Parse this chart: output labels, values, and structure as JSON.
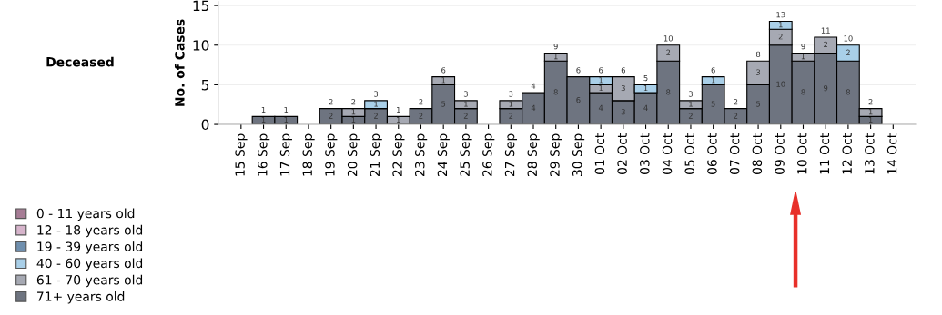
{
  "chart_data": {
    "type": "bar",
    "stacked": true,
    "ylabel": "No. of Cases",
    "annotations": [
      "Deceased"
    ],
    "categories": [
      "15 Sep",
      "16 Sep",
      "17 Sep",
      "18 Sep",
      "19 Sep",
      "20 Sep",
      "21 Sep",
      "22 Sep",
      "23 Sep",
      "24 Sep",
      "25 Sep",
      "26 Sep",
      "27 Sep",
      "28 Sep",
      "29 Sep",
      "30 Sep",
      "01 Oct",
      "02 Oct",
      "03 Oct",
      "04 Oct",
      "05 Oct",
      "06 Oct",
      "07 Oct",
      "08 Oct",
      "09 Oct",
      "10 Oct",
      "11 Oct",
      "12 Oct",
      "13 Oct",
      "14 Oct"
    ],
    "series": [
      {
        "name": "71+ years old",
        "color": "#6e7480",
        "values": [
          null,
          1,
          1,
          null,
          2,
          1,
          2,
          null,
          2,
          5,
          2,
          null,
          2,
          4,
          8,
          6,
          4,
          3,
          4,
          8,
          2,
          5,
          2,
          5,
          10,
          8,
          9,
          8,
          1,
          null
        ]
      },
      {
        "name": "61 - 70 years old",
        "color": "#a6a9b3",
        "values": [
          null,
          null,
          null,
          null,
          null,
          1,
          null,
          1,
          null,
          1,
          1,
          null,
          1,
          null,
          1,
          null,
          1,
          3,
          null,
          2,
          1,
          null,
          null,
          3,
          2,
          1,
          2,
          null,
          1,
          null
        ]
      },
      {
        "name": "40 - 60 years old",
        "color": "#a9cfe8",
        "values": [
          null,
          null,
          null,
          null,
          null,
          null,
          1,
          null,
          null,
          null,
          null,
          null,
          null,
          null,
          null,
          null,
          1,
          null,
          1,
          null,
          null,
          1,
          null,
          null,
          1,
          null,
          null,
          2,
          null,
          null
        ]
      },
      {
        "name": "19 - 39 years old",
        "color": "#6f8fae",
        "values": [
          null,
          null,
          null,
          null,
          null,
          null,
          null,
          null,
          null,
          null,
          null,
          null,
          null,
          null,
          null,
          null,
          null,
          null,
          null,
          null,
          null,
          null,
          null,
          null,
          null,
          null,
          null,
          null,
          null,
          null
        ]
      },
      {
        "name": "12 - 18 years old",
        "color": "#d6b4cb",
        "values": [
          null,
          null,
          null,
          null,
          null,
          null,
          null,
          null,
          null,
          null,
          null,
          null,
          null,
          null,
          null,
          null,
          null,
          null,
          null,
          null,
          null,
          null,
          null,
          null,
          null,
          null,
          null,
          null,
          null,
          null
        ]
      },
      {
        "name": "0 - 11 years old",
        "color": "#a67c95",
        "values": [
          null,
          null,
          null,
          null,
          null,
          null,
          null,
          null,
          null,
          null,
          null,
          null,
          null,
          null,
          null,
          null,
          null,
          null,
          null,
          null,
          null,
          null,
          null,
          null,
          null,
          null,
          null,
          null,
          null,
          null
        ]
      }
    ],
    "totals": [
      null,
      "1",
      "1",
      null,
      "2",
      "2",
      "3",
      "1",
      "2",
      "6",
      "3",
      null,
      "3",
      "4",
      "9",
      "6",
      "6",
      "6",
      "5",
      "10",
      "3",
      "6",
      "2",
      "8",
      "13",
      "9",
      "11",
      "10",
      "2",
      null
    ],
    "data_labels": true,
    "ylim": [
      0,
      15.5
    ],
    "yticks": [
      0,
      5,
      10,
      15
    ],
    "grid": "y",
    "legend": "bottom left"
  }
}
